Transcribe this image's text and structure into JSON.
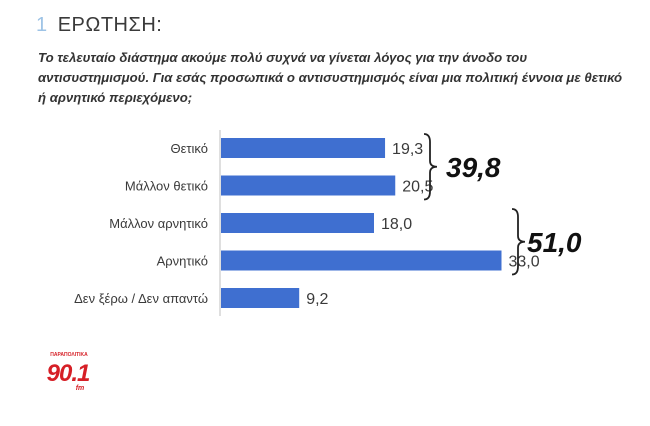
{
  "header": {
    "number": "1",
    "title": "ΕΡΩΤΗΣΗ:",
    "question": "Το τελευταίο διάστημα ακούμε πολύ συχνά να γίνεται λόγος για την άνοδο του αντισυστημισμού. Για εσάς προσωπικά ο αντισυστημισμός είναι μια πολιτική έννοια με θετικό ή αρνητικό περιεχόμενο;"
  },
  "chart_data": {
    "type": "bar",
    "orientation": "horizontal",
    "categories": [
      "Θετικό",
      "Μάλλον θετικό",
      "Μάλλον αρνητικό",
      "Αρνητικό",
      "Δεν ξέρω / Δεν απαντώ"
    ],
    "values": [
      19.3,
      20.5,
      18.0,
      33.0,
      9.2
    ],
    "value_labels": [
      "19,3",
      "20,5",
      "18,0",
      "33,0",
      "9,2"
    ],
    "bar_color": "#3f6fd0",
    "xlim": [
      0,
      35
    ],
    "grid": false,
    "groups": [
      {
        "label": "39,8",
        "categories": [
          "Θετικό",
          "Μάλλον θετικό"
        ]
      },
      {
        "label": "51,0",
        "categories": [
          "Μάλλον αρνητικό",
          "Αρνητικό"
        ]
      }
    ]
  },
  "logo": {
    "top_text": "ΠΑΡΑΠΟΛΙΤΙΚΑ",
    "main": "90.1",
    "sub": "fm",
    "color": "#d61f26"
  }
}
